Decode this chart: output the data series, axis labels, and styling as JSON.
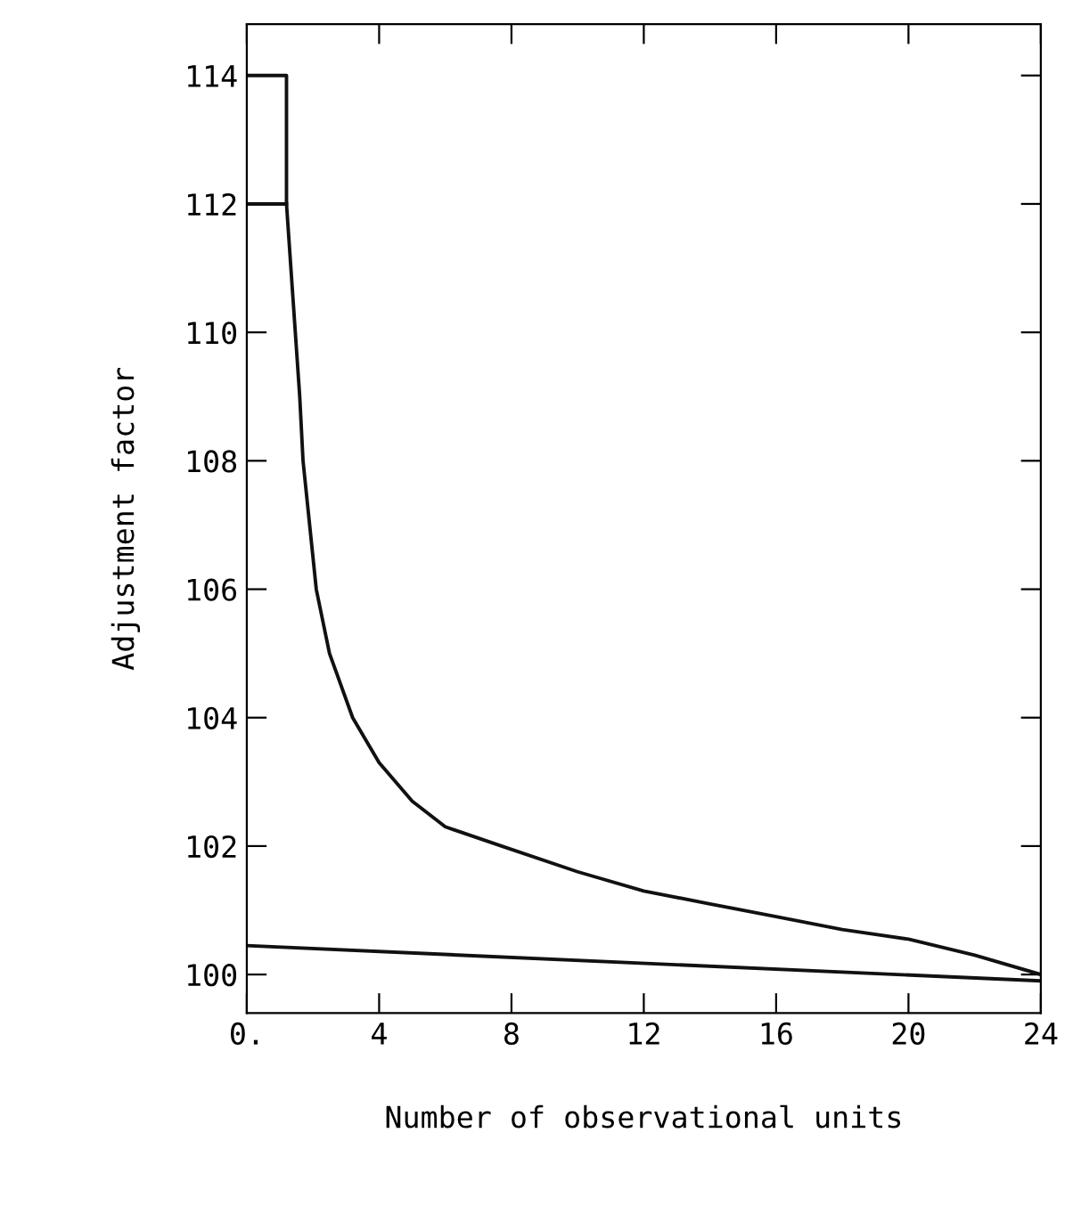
{
  "chart_data": {
    "type": "line",
    "xlabel": "Number of observational units",
    "ylabel": "Adjustment factor",
    "xlim": [
      0,
      24
    ],
    "ylim": [
      99.4,
      114.8
    ],
    "xticks": [
      {
        "value": 0,
        "label": "0."
      },
      4,
      8,
      12,
      16,
      20,
      24
    ],
    "yticks": [
      100,
      102,
      104,
      106,
      108,
      110,
      112,
      114
    ],
    "grid": false,
    "legend": false,
    "marker": "none",
    "line_style": "solid",
    "series": [
      {
        "color": "#111111",
        "x": [
          0,
          1.2,
          1.2,
          1.4,
          1.6,
          1.7,
          1.9,
          2.1,
          2.5,
          3.2,
          4,
          5,
          6,
          7.7,
          10,
          12,
          14,
          16,
          18,
          20,
          22,
          24
        ],
        "values": [
          114,
          114,
          112,
          110.5,
          109,
          108,
          107,
          106,
          105,
          104,
          103.3,
          102.7,
          102.3,
          102,
          101.6,
          101.3,
          101.1,
          100.9,
          100.7,
          100.55,
          100.3,
          100
        ]
      },
      {
        "color": "#111111",
        "x": [
          0,
          1.2
        ],
        "values": [
          112,
          112
        ]
      },
      {
        "color": "#111111",
        "x": [
          0,
          24
        ],
        "values": [
          100.45,
          99.9
        ]
      }
    ]
  }
}
